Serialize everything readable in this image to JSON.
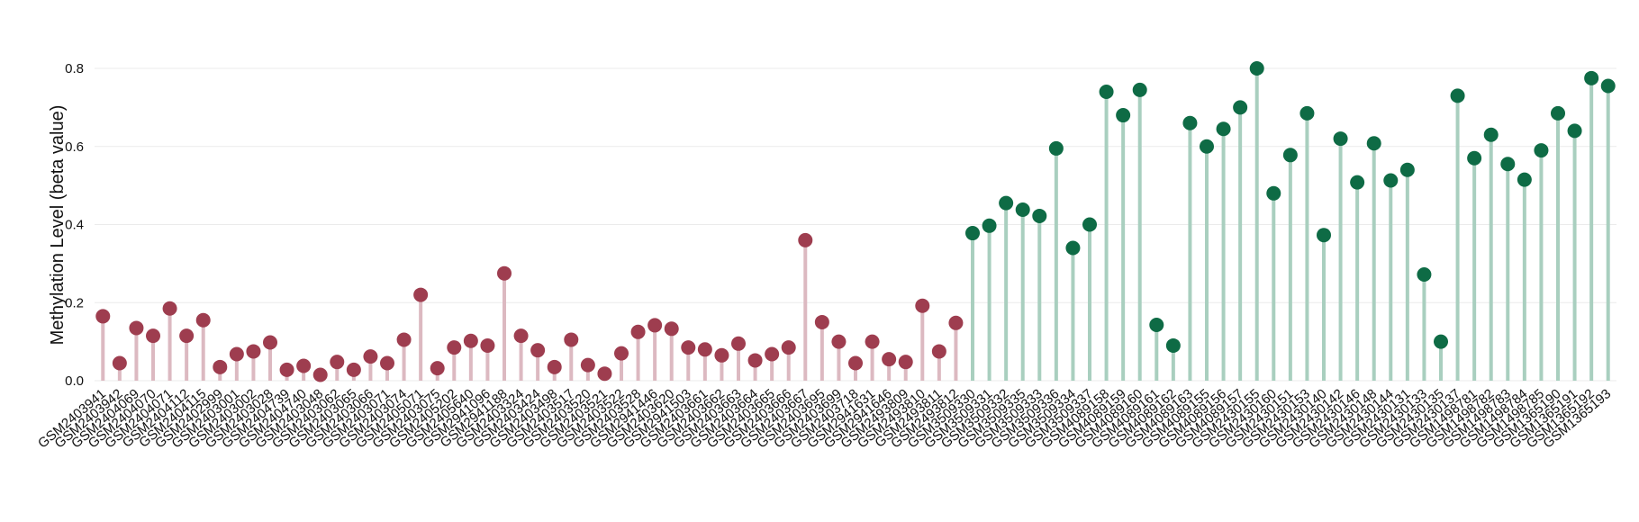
{
  "chart_data": {
    "type": "lollipop",
    "y_label": "Methylation Level (beta value)",
    "ylim": [
      0,
      0.8
    ],
    "yticks": [
      {
        "value": 0,
        "label": "0.0"
      },
      0.2,
      0.4,
      0.6,
      0.8
    ],
    "grid": true,
    "groups": [
      {
        "color": "#9e3d4f",
        "stem_color": "#dcb9c1",
        "categories": [
          "GSM2403941",
          "GSM2403942",
          "GSM2404069",
          "GSM2404070",
          "GSM2404071",
          "GSM2404112",
          "GSM2404115",
          "GSM2402999",
          "GSM2403001",
          "GSM2403002",
          "GSM2403028",
          "GSM2404739",
          "GSM2404740",
          "GSM2403048",
          "GSM2403062",
          "GSM2403065",
          "GSM2403066",
          "GSM2403071",
          "GSM2403074",
          "GSM2405071",
          "GSM2403075",
          "GSM2405202",
          "GSM2405640",
          "GSM2941096",
          "GSM2941188",
          "GSM2403324",
          "GSM2403424",
          "GSM2403498",
          "GSM2403517",
          "GSM2403520",
          "GSM2403521",
          "GSM2403522",
          "GSM2403528",
          "GSM2941446",
          "GSM2403620",
          "GSM2941503",
          "GSM2403661",
          "GSM2403662",
          "GSM2403663",
          "GSM2403664",
          "GSM2403665",
          "GSM2403666",
          "GSM2403667",
          "GSM2403695",
          "GSM2403699",
          "GSM2403718",
          "GSM2941631",
          "GSM2941646",
          "GSM2493809",
          "GSM2493810",
          "GSM2493811",
          "GSM2493812"
        ],
        "values": [
          0.165,
          0.045,
          0.135,
          0.115,
          0.185,
          0.115,
          0.155,
          0.035,
          0.068,
          0.075,
          0.098,
          0.028,
          0.038,
          0.015,
          0.048,
          0.028,
          0.062,
          0.045,
          0.105,
          0.22,
          0.032,
          0.085,
          0.102,
          0.09,
          0.275,
          0.115,
          0.078,
          0.035,
          0.105,
          0.04,
          0.018,
          0.07,
          0.125,
          0.142,
          0.133,
          0.085,
          0.08,
          0.065,
          0.095,
          0.052,
          0.068,
          0.085,
          0.36,
          0.15,
          0.1,
          0.045,
          0.1,
          0.055,
          0.048,
          0.192,
          0.075,
          0.148
        ]
      },
      {
        "color": "#0e6b45",
        "stem_color": "#a9cfbf",
        "categories": [
          "GSM3509330",
          "GSM3509331",
          "GSM3509332",
          "GSM3509335",
          "GSM3509333",
          "GSM3509336",
          "GSM3509334",
          "GSM3509337",
          "GSM4089158",
          "GSM4089159",
          "GSM4089160",
          "GSM4089161",
          "GSM4089162",
          "GSM4089163",
          "GSM4089155",
          "GSM4089156",
          "GSM4089157",
          "GSM2430155",
          "GSM2430160",
          "GSM2430151",
          "GSM2430153",
          "GSM2430140",
          "GSM2430142",
          "GSM2430146",
          "GSM2430148",
          "GSM2430144",
          "GSM2430131",
          "GSM2430133",
          "GSM2430135",
          "GSM2430137",
          "GSM1498781",
          "GSM1498782",
          "GSM1498783",
          "GSM1498784",
          "GSM1498785",
          "GSM1365190",
          "GSM1365191",
          "GSM1365192",
          "GSM1365193"
        ],
        "values": [
          0.378,
          0.397,
          0.455,
          0.438,
          0.422,
          0.595,
          0.34,
          0.4,
          0.74,
          0.68,
          0.745,
          0.143,
          0.09,
          0.66,
          0.6,
          0.645,
          0.7,
          0.8,
          0.48,
          0.578,
          0.685,
          0.373,
          0.62,
          0.508,
          0.608,
          0.513,
          0.54,
          0.272,
          0.1,
          0.73,
          0.57,
          0.63,
          0.555,
          0.515,
          0.59,
          0.685,
          0.64,
          0.775,
          0.755
        ]
      }
    ]
  }
}
